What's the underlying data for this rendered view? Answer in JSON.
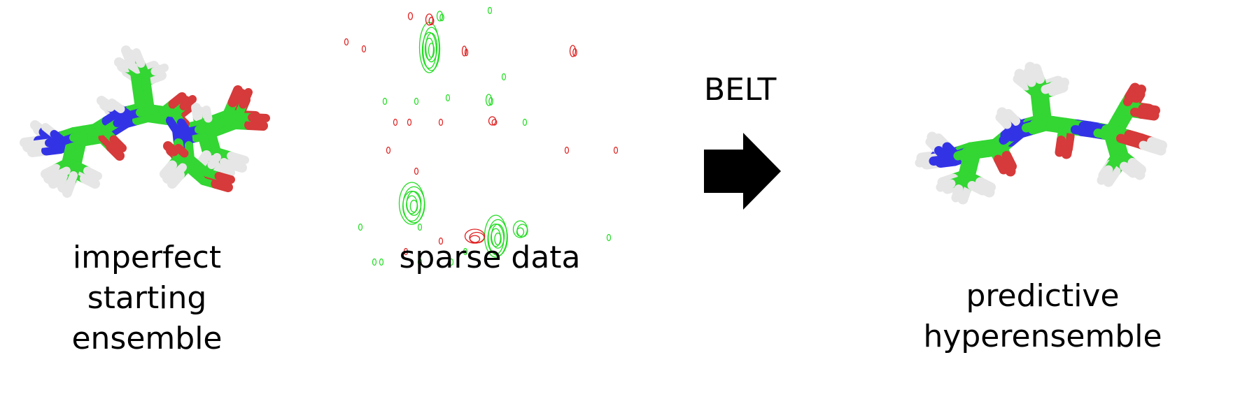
{
  "panels": {
    "left": {
      "caption": [
        "imperfect",
        "starting",
        "ensemble"
      ]
    },
    "middle": {
      "caption": [
        "sparse data"
      ]
    },
    "arrow": {
      "label": "BELT"
    },
    "right": {
      "caption": [
        "predictive",
        "hyperensemble"
      ]
    }
  },
  "colors": {
    "carbon": "#33d633",
    "carbon_dark": "#1f9e1f",
    "nitrogen": "#3333e6",
    "oxygen": "#d63a3a",
    "hydrogen": "#e6e6e6",
    "spectrum_positive": "#22dd22",
    "spectrum_negative": "#e02020",
    "arrow": "#000000"
  },
  "icons": {
    "left": "molecule-ensemble-icon",
    "middle": "nmr-spectrum-icon",
    "arrow": "right-arrow-icon",
    "right": "molecule-hyperensemble-icon"
  }
}
